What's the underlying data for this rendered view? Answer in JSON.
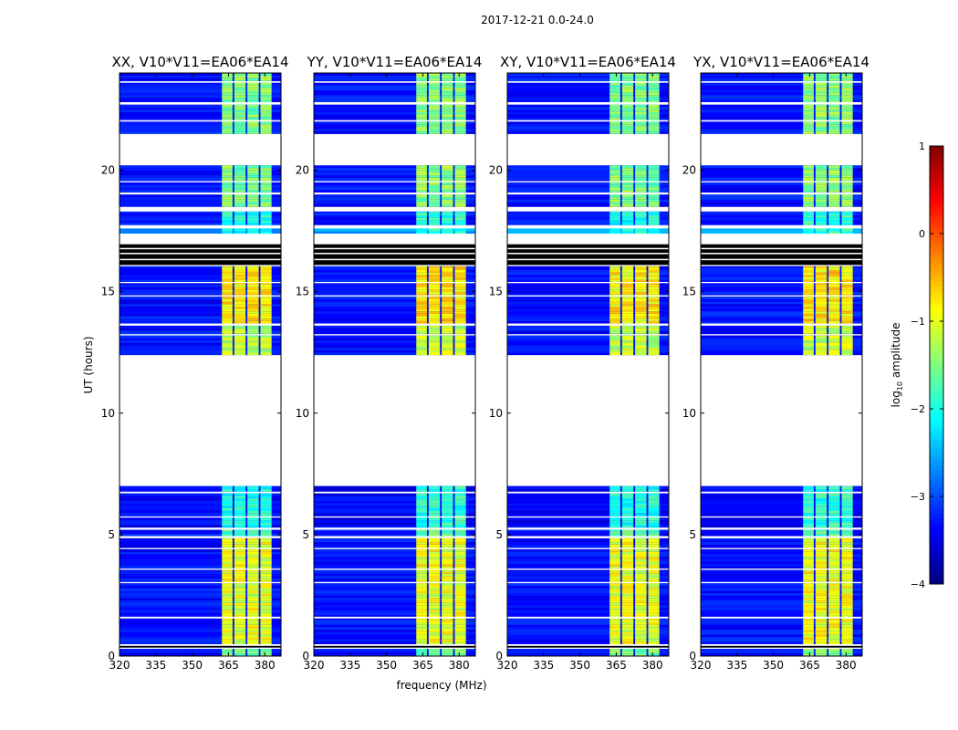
{
  "chart_data": {
    "type": "heatmap",
    "title": "2017-12-21 0.0-24.0",
    "xlabel": "frequency (MHz)",
    "ylabel": "UT (hours)",
    "xlim": [
      320,
      386.7
    ],
    "ylim": [
      0,
      24
    ],
    "xticks": [
      "320",
      "335",
      "350",
      "365",
      "380"
    ],
    "xtick_values": [
      320,
      335,
      350,
      365,
      380
    ],
    "yticks": [
      "0",
      "5",
      "10",
      "15",
      "20"
    ],
    "ytick_values": [
      0,
      5,
      10,
      15,
      20
    ],
    "panels": [
      {
        "title": "XX, V10*V11=EA06*EA14",
        "band_gain": 1.0
      },
      {
        "title": "YY, V10*V11=EA06*EA14",
        "band_gain": 0.95
      },
      {
        "title": "XY, V10*V11=EA06*EA14",
        "band_gain": 1.0
      },
      {
        "title": "YX, V10*V11=EA06*EA14",
        "band_gain": 0.95
      }
    ],
    "subbands_mhz": [
      [
        362.3,
        366.7
      ],
      [
        367.4,
        372.1
      ],
      [
        372.8,
        377.5
      ],
      [
        378.2,
        382.8
      ]
    ],
    "segments_ut": [
      {
        "t0": 0.02,
        "t1": 0.3,
        "bg": -3.3,
        "band": -1.6
      },
      {
        "t0": 0.5,
        "t1": 4.85,
        "bg": -3.3,
        "band": -1.0
      },
      {
        "t0": 4.95,
        "t1": 5.2,
        "bg": -3.3,
        "band": -1.7
      },
      {
        "t0": 5.3,
        "t1": 6.7,
        "bg": -3.4,
        "band": -2.0
      },
      {
        "t0": 6.78,
        "t1": 7.0,
        "bg": -3.4,
        "band": -2.0
      },
      {
        "t0": 12.4,
        "t1": 13.6,
        "bg": -3.3,
        "band": -1.2
      },
      {
        "t0": 13.7,
        "t1": 16.05,
        "bg": -3.3,
        "band": -0.8
      },
      {
        "t0": 17.4,
        "t1": 17.6,
        "bg": -2.6,
        "band": -2.0
      },
      {
        "t0": 17.75,
        "t1": 18.3,
        "bg": -3.3,
        "band": -2.0
      },
      {
        "t0": 18.5,
        "t1": 20.2,
        "bg": -3.3,
        "band": -1.5
      },
      {
        "t0": 21.5,
        "t1": 24.0,
        "bg": -3.3,
        "band": -1.5
      }
    ],
    "blank_lines_ut": [
      [
        1.55,
        1.62
      ],
      [
        3.0,
        3.05
      ],
      [
        3.55,
        3.6
      ],
      [
        4.4,
        4.45
      ],
      [
        5.7,
        5.75
      ],
      [
        13.2,
        13.25
      ],
      [
        14.8,
        14.85
      ],
      [
        15.35,
        15.4
      ],
      [
        19.0,
        19.08
      ],
      [
        19.5,
        19.55
      ],
      [
        22.0,
        22.06
      ],
      [
        22.7,
        22.8
      ],
      [
        23.6,
        23.66
      ]
    ],
    "flagged_black_ut": [
      [
        0.35,
        0.42
      ],
      [
        16.1,
        16.95
      ]
    ],
    "colorbar": {
      "label": "log10 amplitude",
      "label_main": "log",
      "label_sub": "10",
      "label_rest": " amplitude",
      "range": [
        -4,
        1
      ],
      "ticks": [
        "1",
        "0",
        "−1",
        "−2",
        "−3",
        "−4"
      ],
      "tick_values": [
        1,
        0,
        -1,
        -2,
        -3,
        -4
      ],
      "colormap": "jet"
    }
  }
}
